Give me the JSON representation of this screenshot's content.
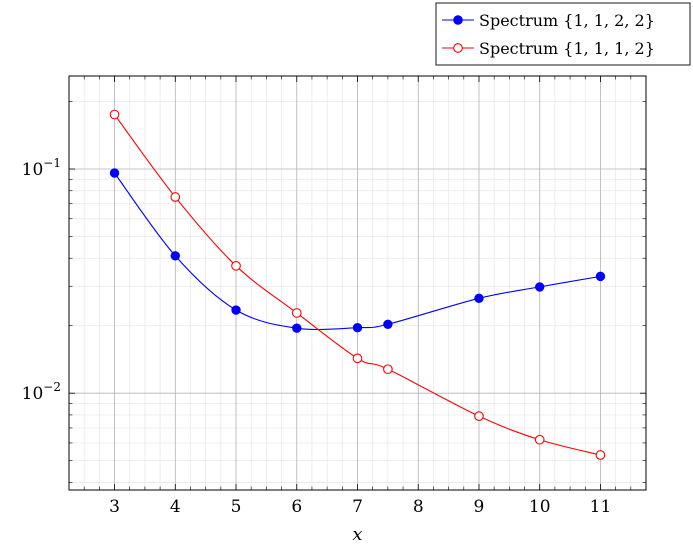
{
  "chart_data": {
    "type": "line",
    "title": "",
    "xlabel": "x",
    "ylabel": "",
    "xlim": [
      2.25,
      11.75
    ],
    "ylim": [
      0.0037,
      0.26
    ],
    "yscale": "log",
    "grid": true,
    "legend_position": "top-right, outside plot",
    "xticks": [
      3,
      4,
      5,
      6,
      7,
      8,
      9,
      10,
      11
    ],
    "xtick_labels": [
      "3",
      "4",
      "5",
      "6",
      "7",
      "8",
      "9",
      "10",
      "11"
    ],
    "yticks": [
      0.1,
      0.01
    ],
    "ytick_labels": [
      {
        "base": "10",
        "exp": "−1"
      },
      {
        "base": "10",
        "exp": "−2"
      }
    ],
    "series": [
      {
        "name": "Spectrum {1, 1, 2, 2}",
        "color": "#0000ff",
        "marker": "filled-circle",
        "x": [
          3,
          4,
          5,
          6,
          7,
          7.5,
          9,
          10,
          11
        ],
        "y": [
          0.096,
          0.041,
          0.0235,
          0.0195,
          0.0196,
          0.0203,
          0.0265,
          0.0298,
          0.0332
        ]
      },
      {
        "name": "Spectrum {1, 1, 1, 2}",
        "color": "#ff0000",
        "marker": "open-circle",
        "x": [
          3,
          4,
          5,
          6,
          7,
          7.5,
          9,
          10,
          11
        ],
        "y": [
          0.175,
          0.075,
          0.037,
          0.0228,
          0.0143,
          0.0128,
          0.0079,
          0.0062,
          0.0053
        ]
      }
    ]
  }
}
